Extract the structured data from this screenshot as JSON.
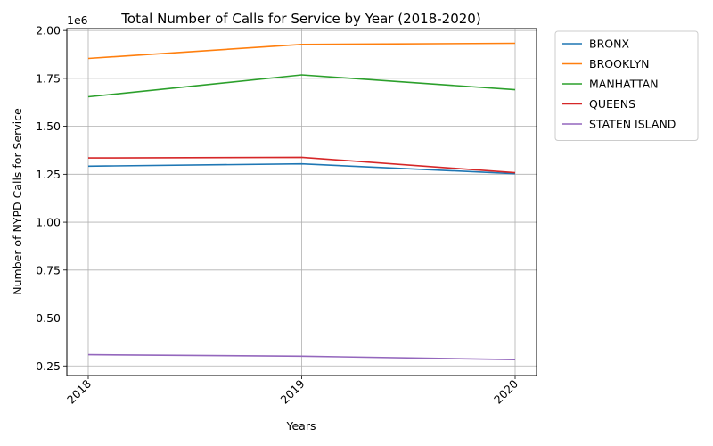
{
  "chart_data": {
    "type": "line",
    "title": "Total Number of Calls for Service by Year (2018-2020)",
    "xlabel": "Years",
    "ylabel": "Number of NYPD Calls for Service",
    "y_offset_label": "1e6",
    "x": [
      "2018",
      "2019",
      "2020"
    ],
    "ylim": [
      200000,
      2010000
    ],
    "yticks": [
      250000,
      500000,
      750000,
      1000000,
      1250000,
      1500000,
      1750000,
      2000000
    ],
    "ytick_labels": [
      "0.25",
      "0.50",
      "0.75",
      "1.00",
      "1.25",
      "1.50",
      "1.75",
      "2.00"
    ],
    "grid": true,
    "legend_position": "outside-top-right",
    "series": [
      {
        "name": "BRONX",
        "color": "#1f77b4",
        "values": [
          1292000,
          1304000,
          1253000
        ]
      },
      {
        "name": "BROOKLYN",
        "color": "#ff7f0e",
        "values": [
          1854000,
          1927000,
          1933000
        ]
      },
      {
        "name": "MANHATTAN",
        "color": "#2ca02c",
        "values": [
          1654000,
          1768000,
          1691000
        ]
      },
      {
        "name": "QUEENS",
        "color": "#d62728",
        "values": [
          1335000,
          1338000,
          1258000
        ]
      },
      {
        "name": "STATEN ISLAND",
        "color": "#9467bd",
        "values": [
          309000,
          301000,
          283000
        ]
      }
    ]
  }
}
